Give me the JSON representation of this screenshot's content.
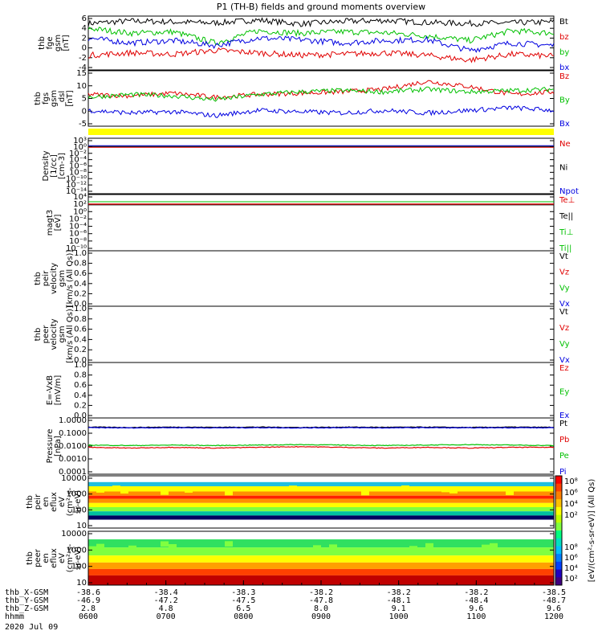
{
  "title": "P1 (TH-B) fields and ground moments overview",
  "date": "2020 Jul 09",
  "chart_data": [
    {
      "type": "line",
      "ylabel": [
        "thb",
        "fge",
        "gsm",
        "[nT]"
      ],
      "ylim": [
        -5,
        6
      ],
      "y_ticks": [
        "6",
        "4",
        "2",
        "0",
        "-2",
        "-4"
      ],
      "legend": [
        {
          "name": "Bt",
          "color": "#000000"
        },
        {
          "name": "bz",
          "color": "#e00000"
        },
        {
          "name": "by",
          "color": "#00c000"
        },
        {
          "name": "bx",
          "color": "#0000e0"
        }
      ],
      "series": [
        {
          "name": "Bt",
          "color": "#000000",
          "y": [
            4.5,
            5.0,
            4.8,
            4.6,
            5.2,
            4.4,
            4.9,
            5.1,
            4.7,
            4.5,
            4.6,
            4.8
          ]
        },
        {
          "name": "by",
          "color": "#00c000",
          "y": [
            3.5,
            2.5,
            2.8,
            0.5,
            3.0,
            2.5,
            2.8,
            2.6,
            2.0,
            1.0,
            3.0,
            2.5
          ]
        },
        {
          "name": "bx",
          "color": "#0000e0",
          "y": [
            1.5,
            0.5,
            1.0,
            0.0,
            1.5,
            1.2,
            0.5,
            1.0,
            1.2,
            -1.0,
            0.5,
            0.0
          ]
        },
        {
          "name": "bz",
          "color": "#e00000",
          "y": [
            -2.0,
            -1.5,
            -1.8,
            -1.0,
            -1.5,
            -2.0,
            -1.8,
            -1.5,
            -2.0,
            -3.0,
            -1.8,
            -2.2
          ]
        }
      ]
    },
    {
      "type": "line",
      "ylabel": [
        "thb",
        "fgs",
        "gsm",
        "_dsl",
        "[nT]"
      ],
      "ylim": [
        -6,
        15
      ],
      "y_ticks": [
        "15",
        "10",
        "5",
        "0",
        "-5"
      ],
      "legend": [
        {
          "name": "Bz",
          "color": "#e00000"
        },
        {
          "name": "By",
          "color": "#00c000"
        },
        {
          "name": "Bx",
          "color": "#0000e0"
        }
      ],
      "series": [
        {
          "name": "Bz",
          "color": "#e00000",
          "y": [
            6,
            5.5,
            6.5,
            5,
            6,
            6.5,
            7,
            8,
            11,
            9,
            6,
            7
          ]
        },
        {
          "name": "By",
          "color": "#00c000",
          "y": [
            5,
            6,
            5.5,
            4,
            6,
            7,
            7.5,
            7,
            8,
            7,
            7.5,
            8
          ]
        },
        {
          "name": "Bx",
          "color": "#0000e0",
          "y": [
            0,
            -1,
            -0.5,
            -2,
            0,
            -0.5,
            -1,
            0,
            -1,
            0,
            1,
            0
          ]
        }
      ]
    },
    {
      "type": "line",
      "ylabel": [
        "Density",
        "[1/cc]",
        "[cm-3]"
      ],
      "y_ticks": [
        "10³",
        "10⁰",
        "10⁻²",
        "10⁻⁴",
        "10⁻⁶",
        "10⁻⁸",
        "10⁻¹⁰",
        "10⁻¹²",
        "10⁻¹⁴"
      ],
      "legend": [
        {
          "name": "Ne",
          "color": "#e00000"
        },
        {
          "name": "Ni",
          "color": "#000000"
        },
        {
          "name": "Npot",
          "color": "#0000e0"
        }
      ]
    },
    {
      "type": "line",
      "ylabel": [
        "magt3",
        "[eV]"
      ],
      "y_ticks": [
        "10⁴",
        "10²",
        "10⁰",
        "10⁻²",
        "10⁻⁴",
        "10⁻⁶",
        "10⁻⁸",
        "10⁻¹⁰"
      ],
      "legend": [
        {
          "name": "Te⊥",
          "color": "#e00000"
        },
        {
          "name": "Te||",
          "color": "#000000"
        },
        {
          "name": "Ti⊥",
          "color": "#00c000"
        },
        {
          "name": "Ti||",
          "color": "#00c000"
        }
      ]
    },
    {
      "type": "line",
      "ylabel": [
        "thb",
        "peir",
        "velocity",
        "gsm",
        "[km/s (All Qs)]"
      ],
      "ylim": [
        0,
        1
      ],
      "y_ticks": [
        "1.0",
        "0.8",
        "0.6",
        "0.4",
        "0.2",
        "0.0"
      ],
      "legend": [
        {
          "name": "Vt",
          "color": "#000000"
        },
        {
          "name": "Vz",
          "color": "#e00000"
        },
        {
          "name": "Vy",
          "color": "#00c000"
        },
        {
          "name": "Vx",
          "color": "#0000e0"
        }
      ]
    },
    {
      "type": "line",
      "ylabel": [
        "thb",
        "peer",
        "velocity",
        "gsm",
        "[km/s (All Qs)]"
      ],
      "ylim": [
        0,
        1
      ],
      "y_ticks": [
        "1.0",
        "0.8",
        "0.6",
        "0.4",
        "0.2",
        "0.0"
      ],
      "legend": [
        {
          "name": "Vt",
          "color": "#000000"
        },
        {
          "name": "Vz",
          "color": "#e00000"
        },
        {
          "name": "Vy",
          "color": "#00c000"
        },
        {
          "name": "Vx",
          "color": "#0000e0"
        }
      ]
    },
    {
      "type": "line",
      "ylabel": [
        "E=-VxB",
        "[mV/m]"
      ],
      "ylim": [
        0,
        1
      ],
      "y_ticks": [
        "1.0",
        "0.8",
        "0.6",
        "0.4",
        "0.2",
        "0.0"
      ],
      "legend": [
        {
          "name": "Ez",
          "color": "#e00000"
        },
        {
          "name": "Ey",
          "color": "#00c000"
        },
        {
          "name": "Ex",
          "color": "#0000e0"
        }
      ]
    },
    {
      "type": "line",
      "ylabel": [
        "Pressure",
        "[nPa]"
      ],
      "y_ticks": [
        "1.0000",
        "0.1000",
        "0.0100",
        "0.0010",
        "0.0001"
      ],
      "legend": [
        {
          "name": "Pt",
          "color": "#000000"
        },
        {
          "name": "Pb",
          "color": "#e00000"
        },
        {
          "name": "Pe",
          "color": "#00c000"
        },
        {
          "name": "Pi",
          "color": "#0000e0"
        }
      ],
      "series": [
        {
          "name": "Pt",
          "color": "#000000",
          "y": [
            0.3,
            0.28,
            0.3,
            0.29,
            0.3,
            0.28,
            0.3,
            0.29,
            0.3,
            0.28,
            0.3,
            0.29
          ]
        },
        {
          "name": "Pi",
          "color": "#0000e0",
          "y": [
            0.27,
            0.26,
            0.27,
            0.26,
            0.27,
            0.26,
            0.27,
            0.26,
            0.27,
            0.26,
            0.27,
            0.26
          ]
        },
        {
          "name": "Pe",
          "color": "#00c000",
          "y": [
            0.012,
            0.011,
            0.012,
            0.011,
            0.012,
            0.013,
            0.012,
            0.011,
            0.012,
            0.013,
            0.012,
            0.011
          ]
        },
        {
          "name": "Pb",
          "color": "#e00000",
          "y": [
            0.008,
            0.007,
            0.008,
            0.007,
            0.008,
            0.009,
            0.008,
            0.007,
            0.008,
            0.007,
            0.008,
            0.008
          ]
        }
      ]
    },
    {
      "type": "heatmap",
      "ylabel": [
        "thb",
        "peir",
        "en",
        "eflux",
        "eV",
        "(cm²-s-",
        "sr-eV)"
      ],
      "y_ticks": [
        "10000",
        "1000",
        "100",
        "10"
      ]
    },
    {
      "type": "heatmap",
      "ylabel": [
        "thb",
        "peer",
        "en",
        "eflux",
        "eV",
        "(cm²-s-",
        "sr-eV)"
      ],
      "y_ticks": [
        "10000",
        "1000",
        "100",
        "10"
      ]
    }
  ],
  "colorbar": {
    "label": "[eV/(cm²-s-sr-eV)] (All Qs)",
    "ticks_upper": [
      "10⁸",
      "10⁶",
      "10⁴",
      "10²"
    ],
    "ticks_lower": [
      "10⁸",
      "10⁶",
      "10⁴",
      "10²"
    ]
  },
  "x_axis": {
    "rows": [
      {
        "label": "thb_X-GSM",
        "values": [
          "-38.6",
          "-38.4",
          "-38.3",
          "-38.2",
          "-38.2",
          "-38.2",
          "-38.5"
        ]
      },
      {
        "label": "thb_Y-GSM",
        "values": [
          "-46.9",
          "-47.2",
          "-47.5",
          "-47.8",
          "-48.1",
          "-48.4",
          "-48.7"
        ]
      },
      {
        "label": "thb_Z-GSM",
        "values": [
          "2.8",
          "4.8",
          "6.5",
          "8.0",
          "9.1",
          "9.6",
          "9.6"
        ]
      },
      {
        "label": "hhmm",
        "values": [
          "0600",
          "0700",
          "0800",
          "0900",
          "1000",
          "1100",
          "1200"
        ]
      }
    ]
  }
}
